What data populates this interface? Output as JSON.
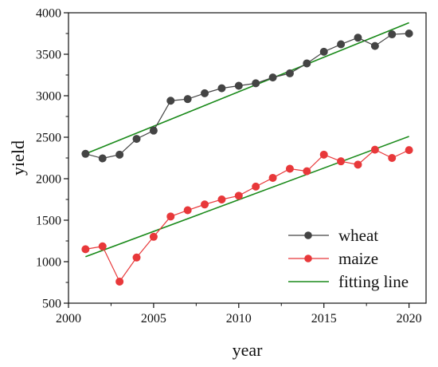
{
  "chart_data": {
    "type": "line",
    "xlabel": "year",
    "ylabel": "yield",
    "xlim": [
      2000,
      2021
    ],
    "ylim": [
      500,
      4000
    ],
    "x_ticks": [
      "2000",
      "2005",
      "2010",
      "2015",
      "2020"
    ],
    "y_ticks": [
      "500",
      "1000",
      "1500",
      "2000",
      "2500",
      "3000",
      "3500",
      "4000"
    ],
    "grid": false,
    "legend_position": "bottom-right",
    "x": [
      2001,
      2002,
      2003,
      2004,
      2005,
      2006,
      2007,
      2008,
      2009,
      2010,
      2011,
      2012,
      2013,
      2014,
      2015,
      2016,
      2017,
      2018,
      2019,
      2020
    ],
    "series": [
      {
        "name": "wheat",
        "color": "#444444",
        "marker": "circle",
        "values": [
          2300,
          2245,
          2290,
          2480,
          2580,
          2940,
          2960,
          3030,
          3090,
          3120,
          3150,
          3220,
          3270,
          3390,
          3530,
          3620,
          3700,
          3600,
          3740,
          3750
        ]
      },
      {
        "name": "maize",
        "color": "#e8383a",
        "marker": "circle",
        "values": [
          1150,
          1185,
          760,
          1050,
          1300,
          1545,
          1620,
          1690,
          1750,
          1795,
          1905,
          2010,
          2120,
          2090,
          2290,
          2210,
          2170,
          2350,
          2250,
          2345
        ]
      }
    ],
    "fitting_lines": [
      {
        "series": "wheat",
        "start": [
          2001,
          2300
        ],
        "end": [
          2020,
          3880
        ]
      },
      {
        "series": "maize",
        "start": [
          2001,
          1060
        ],
        "end": [
          2020,
          2510
        ]
      }
    ],
    "fitting_line_label": "fitting line",
    "fitting_line_color": "#1a8a1a"
  }
}
